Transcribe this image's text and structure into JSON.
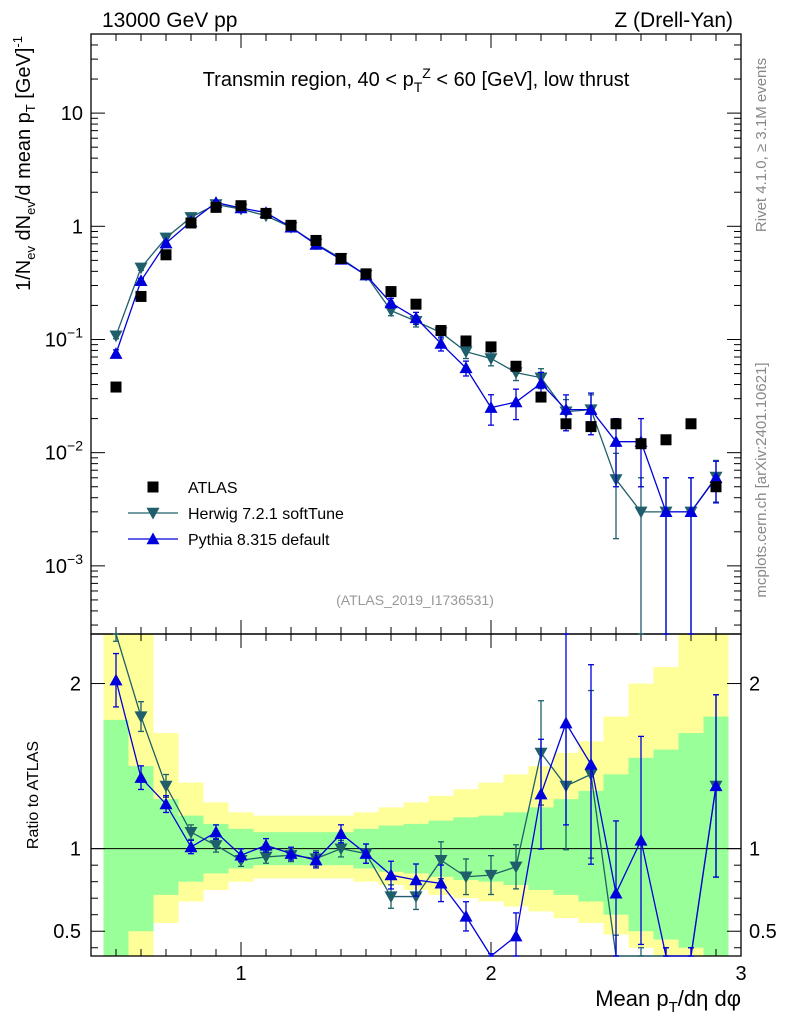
{
  "header": {
    "left": "13000 GeV pp",
    "right": "Z (Drell-Yan)"
  },
  "side_labels": {
    "rivet": "Rivet 4.1.0, ≥ 3.1M events",
    "mcplots": "mcplots.cern.ch [arXiv:2401.10621]"
  },
  "chart_data": {
    "type": "scatter",
    "title": "Transmin region, 40 < p_T^Z < 60 [GeV], low thrust",
    "xlabel": "Mean p_T/dη dφ",
    "ylabel": "1/N_ev dN_ev/d mean p_T [GeV]^-1",
    "ratio_ylabel": "Ratio to ATLAS",
    "analysis_tag": "(ATLAS_2019_I1736531)",
    "xlim": [
      0.4,
      3.0
    ],
    "ylim_log": [
      0.00025,
      50
    ],
    "ratio_ylim": [
      0.35,
      2.3
    ],
    "x_ticks": [
      1,
      2,
      3
    ],
    "y_ticks_log": [
      {
        "v": 0.001,
        "base": "10",
        "exp": "−3"
      },
      {
        "v": 0.01,
        "base": "10",
        "exp": "−2"
      },
      {
        "v": 0.1,
        "base": "10",
        "exp": "−1"
      },
      {
        "v": 1,
        "base": "1",
        "exp": ""
      },
      {
        "v": 10,
        "base": "10",
        "exp": ""
      }
    ],
    "ratio_ticks": [
      0.5,
      1,
      2
    ],
    "x": [
      0.5,
      0.6,
      0.7,
      0.8,
      0.9,
      1.0,
      1.1,
      1.2,
      1.3,
      1.4,
      1.5,
      1.6,
      1.7,
      1.8,
      1.9,
      2.0,
      2.1,
      2.2,
      2.3,
      2.4,
      2.5,
      2.6,
      2.7,
      2.8,
      2.9
    ],
    "band_edges": [
      0.45,
      0.55,
      0.65,
      0.75,
      0.85,
      0.95,
      1.05,
      1.15,
      1.25,
      1.35,
      1.45,
      1.55,
      1.65,
      1.75,
      1.85,
      1.95,
      2.05,
      2.15,
      2.25,
      2.35,
      2.45,
      2.55,
      2.65,
      2.75,
      2.85,
      2.95
    ],
    "data": {
      "name": "ATLAS",
      "color": "#000000",
      "values": [
        0.038,
        0.24,
        0.56,
        1.07,
        1.47,
        1.52,
        1.3,
        1.02,
        0.75,
        0.52,
        0.38,
        0.265,
        0.205,
        0.12,
        0.097,
        0.086,
        0.058,
        0.031,
        0.018,
        0.017,
        0.018,
        0.012,
        0.013,
        0.018,
        0.005
      ],
      "stat_band_lo": [
        0.3,
        0.5,
        0.72,
        0.8,
        0.85,
        0.88,
        0.9,
        0.9,
        0.9,
        0.9,
        0.88,
        0.86,
        0.85,
        0.83,
        0.81,
        0.8,
        0.78,
        0.75,
        0.72,
        0.68,
        0.6,
        0.5,
        0.45,
        0.4,
        0.3
      ],
      "stat_band_hi": [
        1.78,
        1.5,
        1.3,
        1.2,
        1.15,
        1.12,
        1.1,
        1.1,
        1.1,
        1.1,
        1.12,
        1.14,
        1.15,
        1.17,
        1.19,
        1.2,
        1.22,
        1.25,
        1.3,
        1.35,
        1.45,
        1.55,
        1.6,
        1.7,
        1.8
      ],
      "tot_band_lo": [
        0.3,
        0.35,
        0.55,
        0.68,
        0.75,
        0.8,
        0.82,
        0.82,
        0.82,
        0.82,
        0.8,
        0.78,
        0.75,
        0.72,
        0.7,
        0.68,
        0.65,
        0.62,
        0.58,
        0.55,
        0.48,
        0.4,
        0.35,
        0.3,
        0.3
      ],
      "tot_band_hi": [
        2.3,
        2.3,
        1.7,
        1.4,
        1.28,
        1.22,
        1.2,
        1.2,
        1.2,
        1.2,
        1.22,
        1.25,
        1.28,
        1.32,
        1.36,
        1.4,
        1.45,
        1.5,
        1.58,
        1.65,
        1.8,
        2.0,
        2.1,
        2.3,
        2.3
      ]
    },
    "series": [
      {
        "name": "Herwig 7.2.1 softTune",
        "color": "#1e5f6b",
        "marker": "triangle-down",
        "values": [
          0.108,
          0.43,
          0.79,
          1.2,
          1.56,
          1.42,
          1.24,
          0.98,
          0.7,
          0.52,
          0.37,
          0.18,
          0.145,
          0.115,
          0.078,
          0.068,
          0.051,
          0.046,
          0.023,
          0.024,
          0.0058,
          0.003,
          0.003,
          0.003,
          0.0061
        ],
        "err": [
          0.06,
          0.05,
          0.05,
          0.04,
          0.04,
          0.04,
          0.04,
          0.04,
          0.05,
          0.05,
          0.06,
          0.1,
          0.11,
          0.12,
          0.13,
          0.14,
          0.15,
          0.2,
          0.28,
          0.35,
          0.7,
          1.0,
          1.0,
          1.0,
          0.4
        ],
        "ratio": [
          2.4,
          1.8,
          1.38,
          1.1,
          1.02,
          0.93,
          0.95,
          0.96,
          0.94,
          1.0,
          0.97,
          0.71,
          0.71,
          0.93,
          0.83,
          0.84,
          0.89,
          1.58,
          1.38,
          1.45,
          0.28,
          0.2,
          0.2,
          0.2,
          1.38
        ]
      },
      {
        "name": "Pythia 8.315 default",
        "color": "#0000dd",
        "marker": "triangle-up",
        "values": [
          0.075,
          0.33,
          0.71,
          1.1,
          1.62,
          1.45,
          1.32,
          0.98,
          0.69,
          0.51,
          0.37,
          0.21,
          0.155,
          0.092,
          0.056,
          0.025,
          0.028,
          0.041,
          0.024,
          0.024,
          0.0125,
          0.0125,
          0.003,
          0.003,
          0.006
        ],
        "err": [
          0.08,
          0.05,
          0.04,
          0.04,
          0.04,
          0.04,
          0.04,
          0.04,
          0.05,
          0.05,
          0.06,
          0.1,
          0.12,
          0.14,
          0.15,
          0.3,
          0.3,
          0.25,
          0.35,
          0.4,
          0.6,
          0.6,
          1.0,
          1.0,
          0.4
        ],
        "ratio": [
          2.02,
          1.43,
          1.27,
          1.01,
          1.1,
          0.96,
          1.02,
          0.97,
          0.93,
          1.09,
          0.97,
          0.84,
          0.81,
          0.79,
          0.59,
          0.28,
          0.47,
          1.33,
          1.76,
          1.51,
          0.73,
          1.05,
          0.2,
          0.2,
          1.38
        ]
      }
    ]
  }
}
